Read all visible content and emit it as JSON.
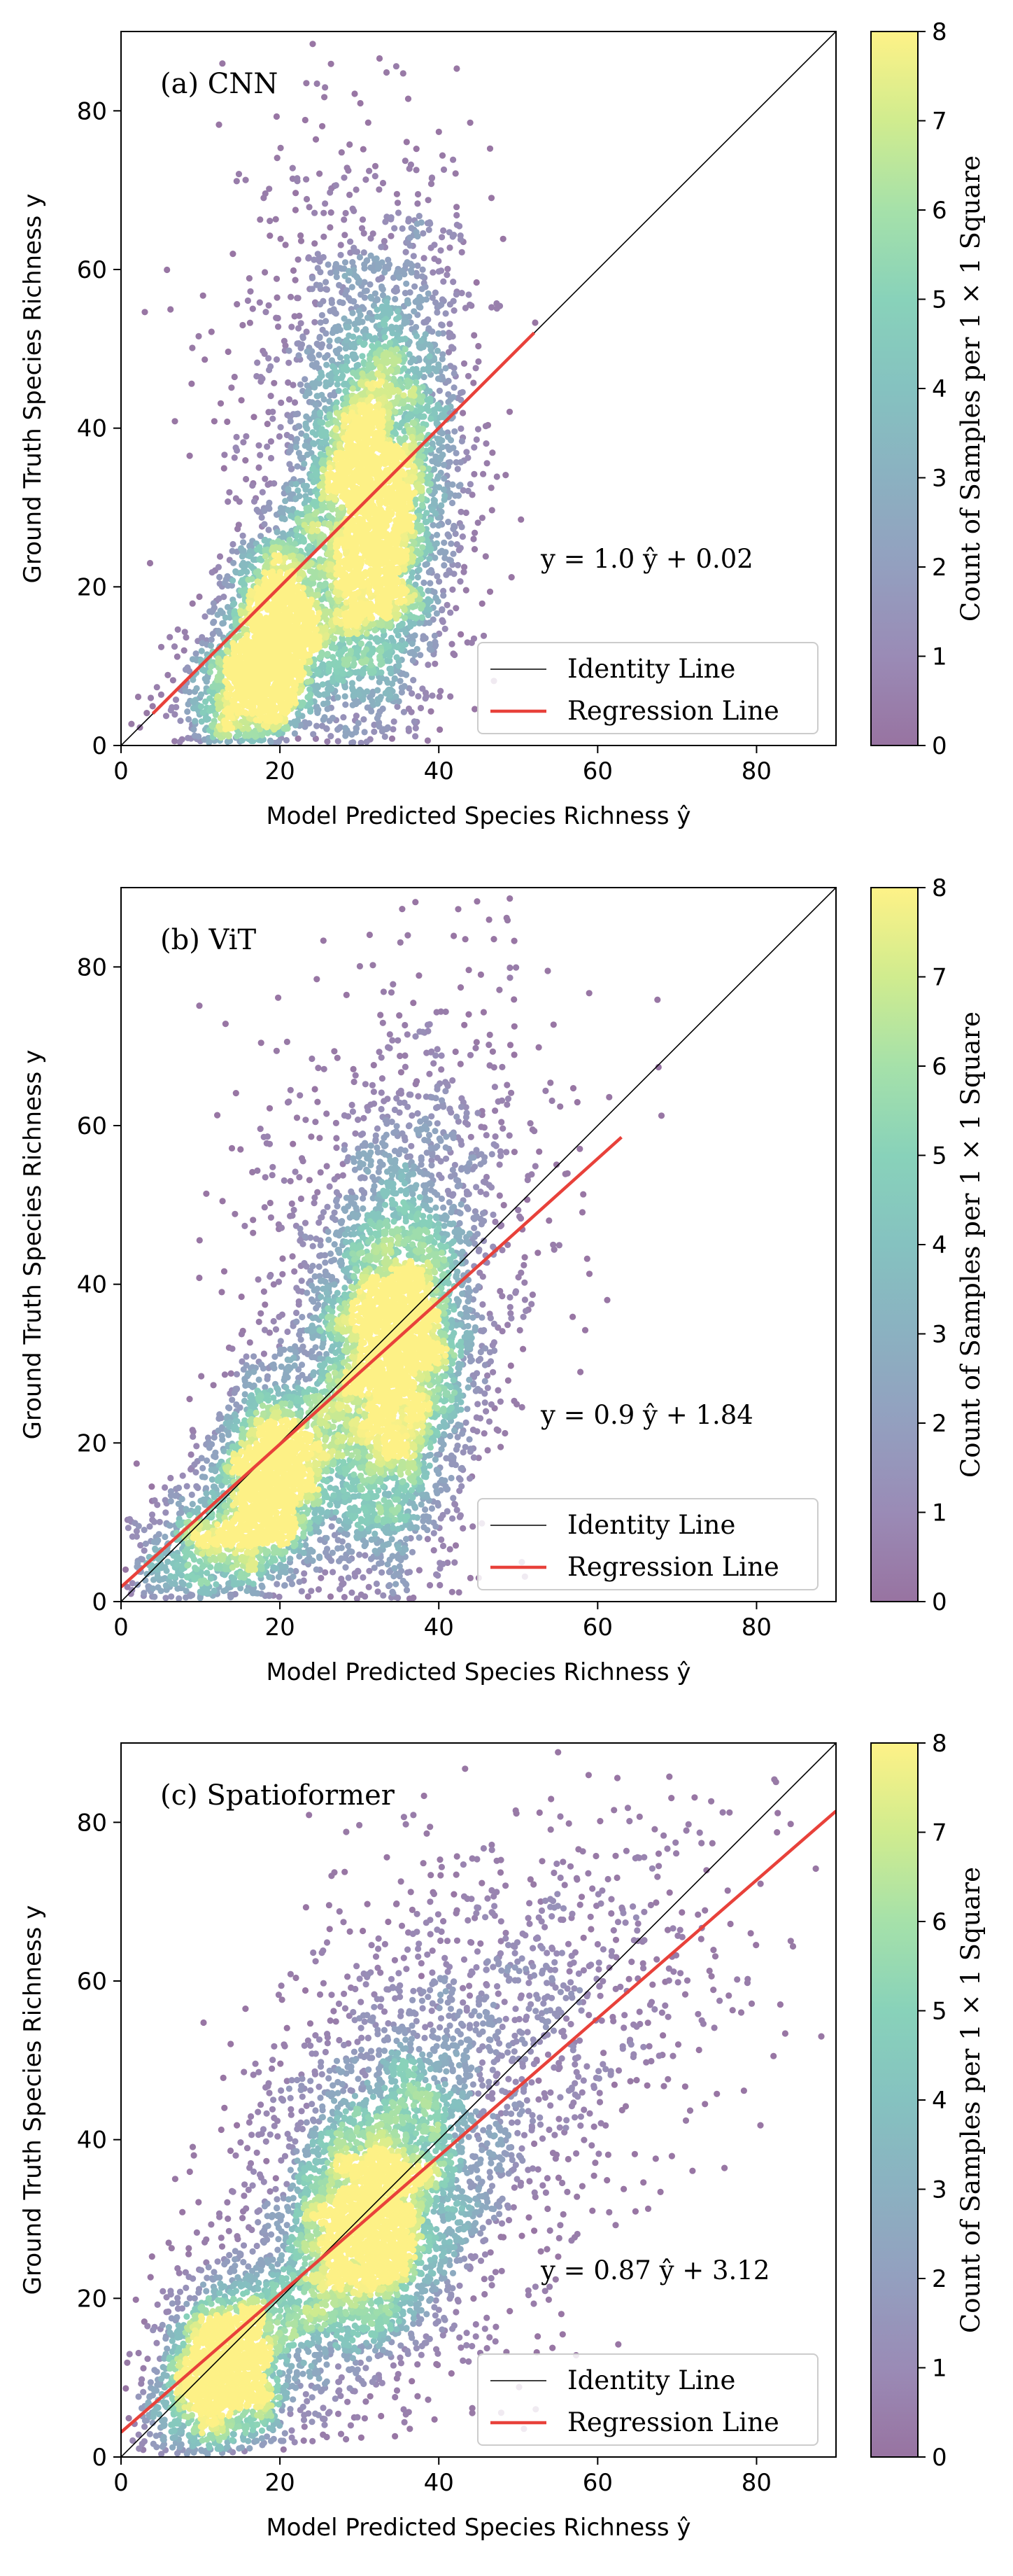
{
  "colors": {
    "identity": "#000000",
    "regression": "#e8413a",
    "axis": "#000000",
    "viridis": [
      "#440154",
      "#472c7a",
      "#3b518b",
      "#2c718e",
      "#21908d",
      "#27ad81",
      "#5cc863",
      "#aadc32",
      "#fde725"
    ]
  },
  "chart_data": [
    {
      "type": "scatter",
      "panel_label": "(a) CNN",
      "xlabel": "Model Predicted Species Richness ŷ",
      "ylabel": "Ground Truth Species Richness y",
      "xlim": [
        0,
        90
      ],
      "ylim": [
        0,
        90
      ],
      "xticks": [
        0,
        20,
        40,
        60,
        80
      ],
      "yticks": [
        0,
        20,
        40,
        60,
        80
      ],
      "equation": "y = 1.0 ŷ + 0.02",
      "legend": {
        "placement": "lower-right",
        "entries": [
          "Identity Line",
          "Regression Line"
        ]
      },
      "identity_line": {
        "slope": 1,
        "intercept": 0
      },
      "regression_line": {
        "slope": 1.0,
        "intercept": 0.02,
        "x_range": [
          4,
          52
        ]
      },
      "clusters": [
        {
          "x": 32,
          "y": 30,
          "sx": 5,
          "sy": 14,
          "n": 3800
        },
        {
          "x": 19,
          "y": 14,
          "sx": 3,
          "sy": 7,
          "n": 1400
        },
        {
          "x": 16,
          "y": 7,
          "sx": 5,
          "sy": 5,
          "n": 900
        },
        {
          "x": 28,
          "y": 42,
          "sx": 8,
          "sy": 18,
          "n": 800
        }
      ],
      "colorbar": {
        "label": "Count of Samples per 1 × 1 Square",
        "range": [
          0,
          8
        ],
        "ticks": [
          0,
          1,
          2,
          3,
          4,
          5,
          6,
          7,
          8
        ]
      }
    },
    {
      "type": "scatter",
      "panel_label": "(b) ViT",
      "xlabel": "Model Predicted Species Richness ŷ",
      "ylabel": "Ground Truth Species Richness y",
      "xlim": [
        0,
        90
      ],
      "ylim": [
        0,
        90
      ],
      "xticks": [
        0,
        20,
        40,
        60,
        80
      ],
      "yticks": [
        0,
        20,
        40,
        60,
        80
      ],
      "equation": "y = 0.9 ŷ + 1.84",
      "legend": {
        "placement": "lower-right",
        "entries": [
          "Identity Line",
          "Regression Line"
        ]
      },
      "identity_line": {
        "slope": 1,
        "intercept": 0
      },
      "regression_line": {
        "slope": 0.9,
        "intercept": 1.84,
        "x_range": [
          0,
          63
        ]
      },
      "clusters": [
        {
          "x": 34,
          "y": 30,
          "sx": 5,
          "sy": 13,
          "n": 3600
        },
        {
          "x": 19,
          "y": 16,
          "sx": 4,
          "sy": 7,
          "n": 1800
        },
        {
          "x": 10,
          "y": 6,
          "sx": 5,
          "sy": 5,
          "n": 700
        },
        {
          "x": 35,
          "y": 45,
          "sx": 10,
          "sy": 17,
          "n": 900
        }
      ],
      "colorbar": {
        "label": "Count of Samples per 1 × 1 Square",
        "range": [
          0,
          8
        ],
        "ticks": [
          0,
          1,
          2,
          3,
          4,
          5,
          6,
          7,
          8
        ]
      }
    },
    {
      "type": "scatter",
      "panel_label": "(c) Spatioformer",
      "xlabel": "Model Predicted Species Richness ŷ",
      "ylabel": "Ground Truth Species Richness y",
      "xlim": [
        0,
        90
      ],
      "ylim": [
        0,
        90
      ],
      "xticks": [
        0,
        20,
        40,
        60,
        80
      ],
      "yticks": [
        0,
        20,
        40,
        60,
        80
      ],
      "equation": "y = 0.87 ŷ + 3.12",
      "legend": {
        "placement": "lower-right",
        "entries": [
          "Identity Line",
          "Regression Line"
        ]
      },
      "identity_line": {
        "slope": 1,
        "intercept": 0
      },
      "regression_line": {
        "slope": 0.87,
        "intercept": 3.12,
        "x_range": [
          0,
          90
        ]
      },
      "clusters": [
        {
          "x": 31,
          "y": 29,
          "sx": 6,
          "sy": 9,
          "n": 2800
        },
        {
          "x": 13,
          "y": 11,
          "sx": 5,
          "sy": 6,
          "n": 2000
        },
        {
          "x": 38,
          "y": 42,
          "sx": 11,
          "sy": 14,
          "n": 1600
        },
        {
          "x": 58,
          "y": 60,
          "sx": 12,
          "sy": 13,
          "n": 400
        }
      ],
      "colorbar": {
        "label": "Count of Samples per 1 × 1 Square",
        "range": [
          0,
          8
        ],
        "ticks": [
          0,
          1,
          2,
          3,
          4,
          5,
          6,
          7,
          8
        ]
      }
    }
  ]
}
